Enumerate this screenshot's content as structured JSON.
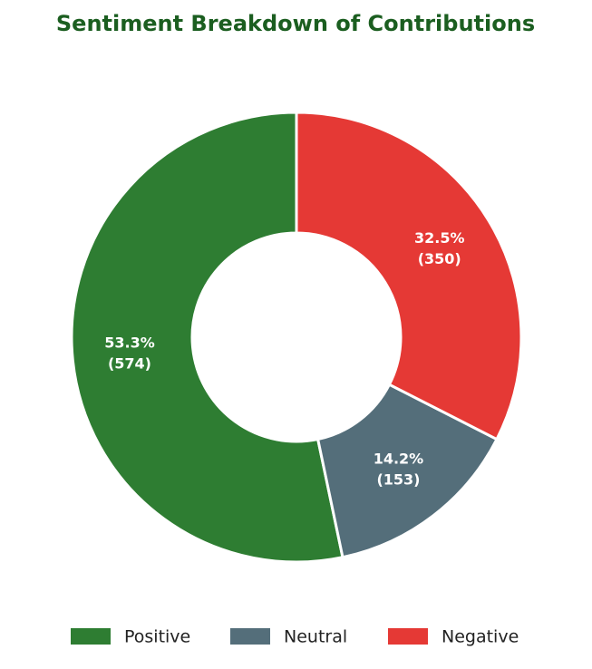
{
  "chart_data": {
    "type": "donut",
    "title": "Sentiment Breakdown of Contributions",
    "categories": [
      "Positive",
      "Neutral",
      "Negative"
    ],
    "values": [
      574,
      153,
      350
    ],
    "value_labels": [
      "(574)",
      "(153)",
      "(350)"
    ],
    "percentages": [
      53.3,
      14.2,
      32.5
    ],
    "percentage_labels": [
      "53.3%",
      "14.2%",
      "32.5%"
    ],
    "colors": [
      "#2e7d32",
      "#546e7a",
      "#e53935"
    ],
    "direction": "counterclockwise",
    "legend": "bottom"
  }
}
